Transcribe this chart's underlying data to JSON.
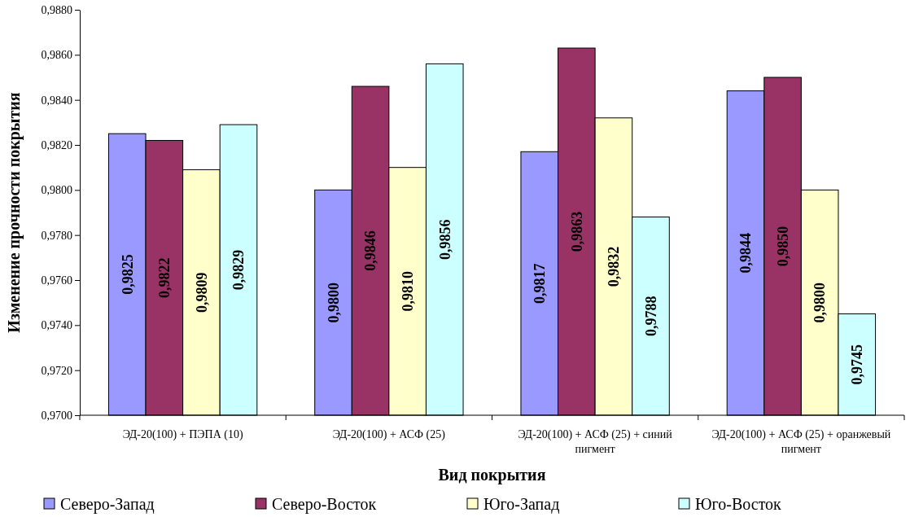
{
  "chart_data": {
    "type": "bar",
    "xlabel": "Вид покрытия",
    "ylabel": "Изменение прочности покрытия",
    "categories": [
      "ЭД-20(100) + ПЭПА (10)",
      "ЭД-20(100) + АСФ (25)",
      "ЭД-20(100) + АСФ (25) + синий пигмент",
      "ЭД-20(100) + АСФ (25) + оранжевый пигмент"
    ],
    "series": [
      {
        "name": "Северо-Запад",
        "color": "#9999ff",
        "values": [
          0.9825,
          0.98,
          0.9817,
          0.9844
        ],
        "value_labels": [
          "0,9825",
          "0,9800",
          "0,9817",
          "0,9844"
        ]
      },
      {
        "name": "Северо-Восток",
        "color": "#993366",
        "values": [
          0.9822,
          0.9846,
          0.9863,
          0.985
        ],
        "value_labels": [
          "0,9822",
          "0,9846",
          "0,9863",
          "0,9850"
        ]
      },
      {
        "name": "Юго-Запад",
        "color": "#ffffcc",
        "values": [
          0.9809,
          0.981,
          0.9832,
          0.98
        ],
        "value_labels": [
          "0,9809",
          "0,9810",
          "0,9832",
          "0,9800"
        ]
      },
      {
        "name": "Юго-Восток",
        "color": "#ccffff",
        "values": [
          0.9829,
          0.9856,
          0.9788,
          0.9745
        ],
        "value_labels": [
          "0,9829",
          "0,9856",
          "0,9788",
          "0,9745"
        ]
      }
    ],
    "ylim": [
      0.97,
      0.988
    ],
    "yticks": [
      {
        "value": 0.97,
        "label": "0,9700"
      },
      {
        "value": 0.972,
        "label": "0,9720"
      },
      {
        "value": 0.974,
        "label": "0,9740"
      },
      {
        "value": 0.976,
        "label": "0,9760"
      },
      {
        "value": 0.978,
        "label": "0,9780"
      },
      {
        "value": 0.98,
        "label": "0,9800"
      },
      {
        "value": 0.982,
        "label": "0,9820"
      },
      {
        "value": 0.984,
        "label": "0,9840"
      },
      {
        "value": 0.986,
        "label": "0,9860"
      },
      {
        "value": 0.988,
        "label": "0,9880"
      }
    ],
    "grid": false,
    "legend": "bottom"
  }
}
